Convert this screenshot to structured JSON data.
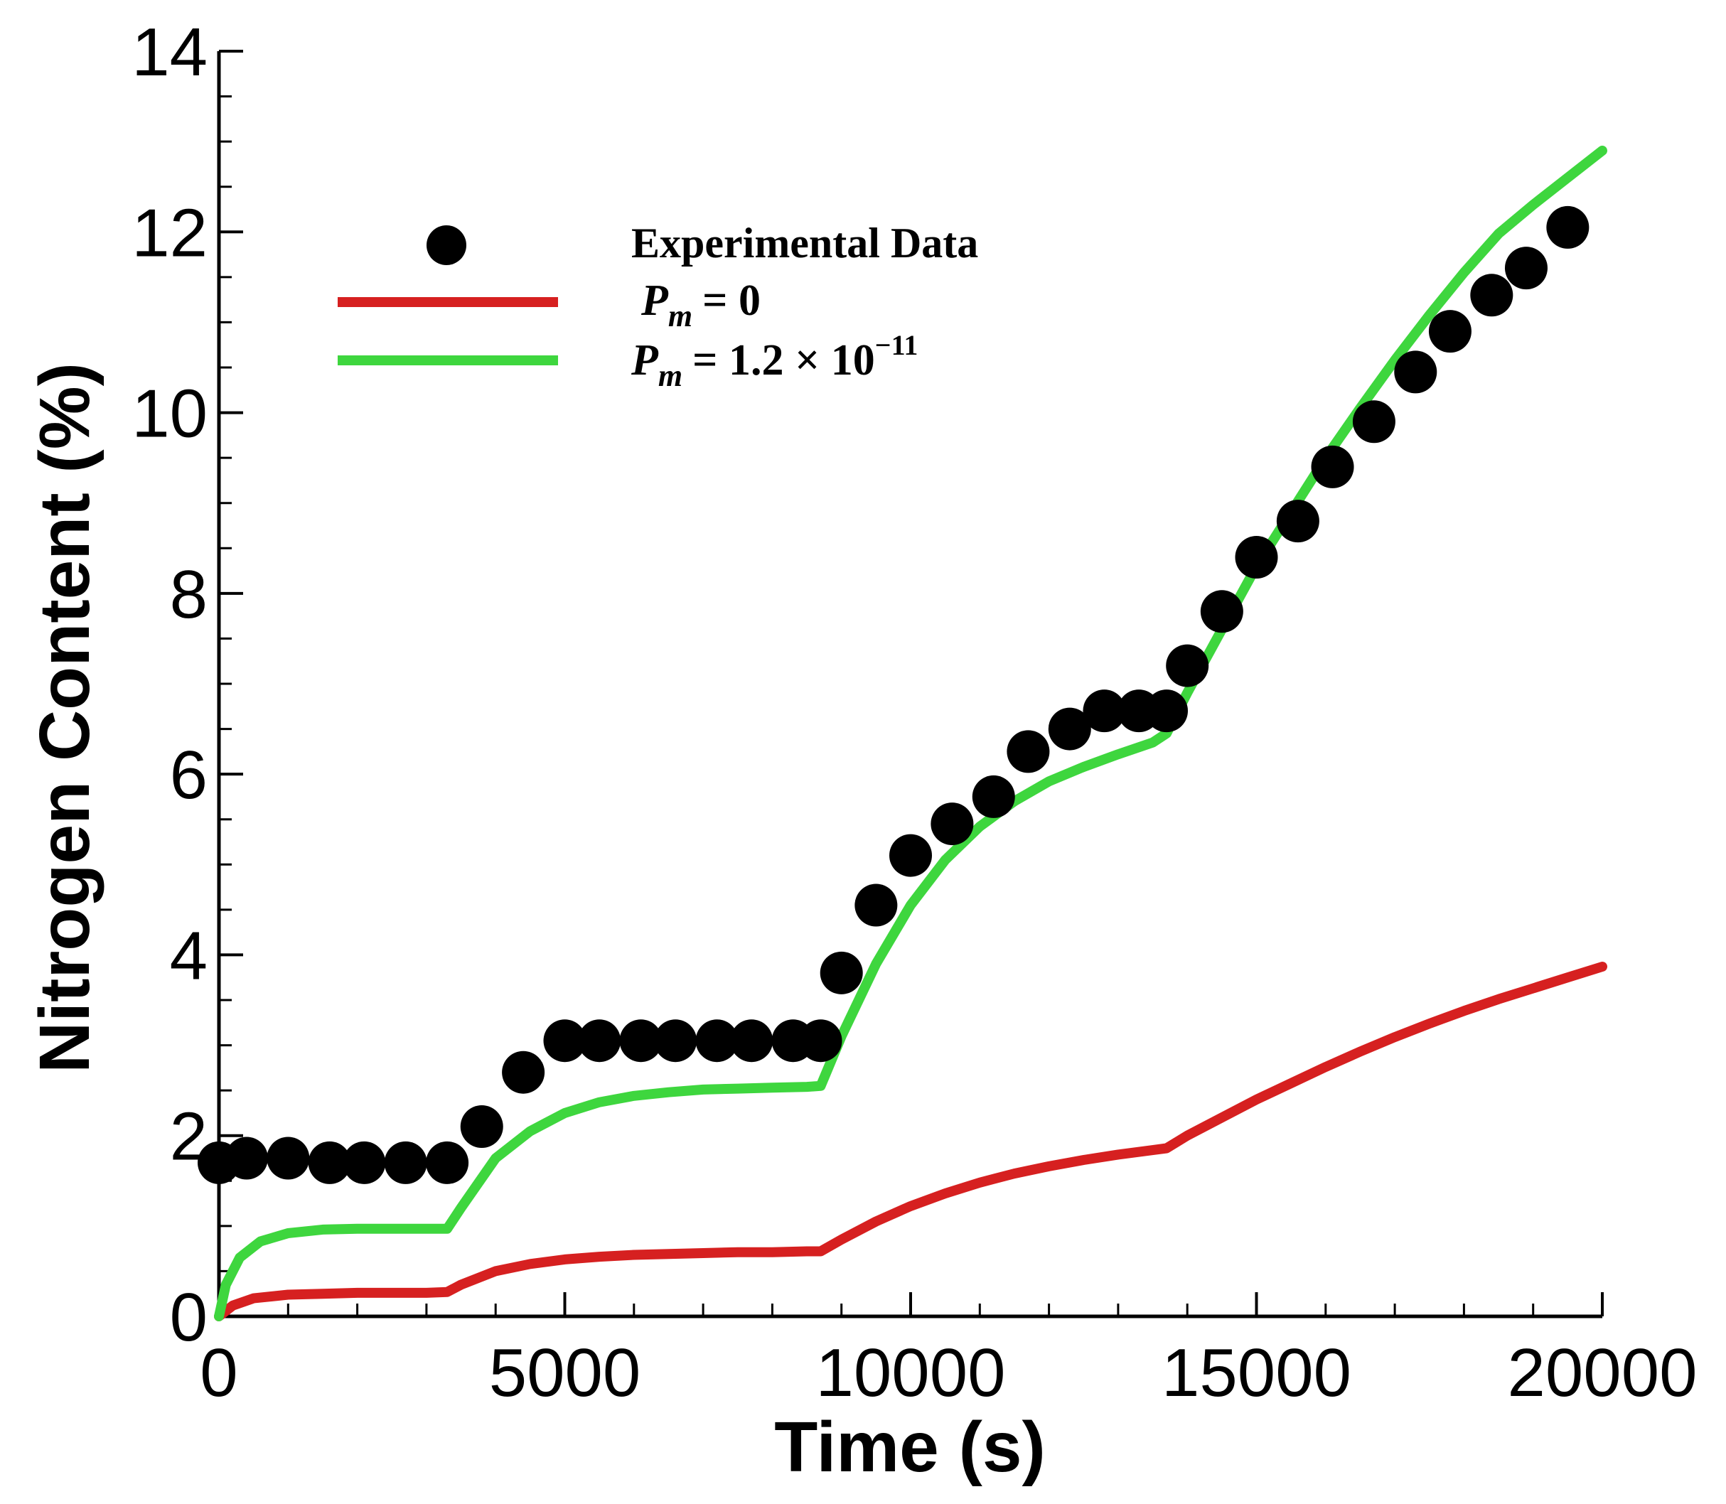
{
  "chart_data": {
    "type": "line",
    "title": "",
    "xlabel": "Time (s)",
    "ylabel": "Nitrogen Content (%)",
    "xlim": [
      0,
      20000
    ],
    "ylim": [
      0,
      14
    ],
    "x_ticks": [
      0,
      5000,
      10000,
      15000,
      20000
    ],
    "y_ticks": [
      0,
      2,
      4,
      6,
      8,
      10,
      12,
      14
    ],
    "x_tick_labels": [
      "0",
      "5000",
      "10000",
      "15000",
      "20000"
    ],
    "y_tick_labels": [
      "0",
      "2",
      "4",
      "6",
      "8",
      "10",
      "12",
      "14"
    ],
    "grid": false,
    "legend_position": "top-left",
    "series": [
      {
        "name": "Experimental Data",
        "style": "markers",
        "color": "#000000",
        "x": [
          0,
          400,
          1000,
          1600,
          2100,
          2700,
          3300,
          3800,
          4400,
          5000,
          5500,
          6100,
          6600,
          7200,
          7700,
          8300,
          8700,
          9000,
          9500,
          10000,
          10600,
          11200,
          11700,
          12300,
          12800,
          13300,
          13700,
          14000,
          14500,
          15000,
          15600,
          16100,
          16700,
          17300,
          17800,
          18400,
          18900,
          19500
        ],
        "y": [
          1.7,
          1.75,
          1.75,
          1.7,
          1.7,
          1.7,
          1.7,
          2.1,
          2.7,
          3.05,
          3.05,
          3.05,
          3.05,
          3.05,
          3.05,
          3.05,
          3.05,
          3.8,
          4.55,
          5.1,
          5.45,
          5.75,
          6.25,
          6.5,
          6.7,
          6.7,
          6.7,
          7.2,
          7.8,
          8.4,
          8.8,
          9.4,
          9.9,
          10.45,
          10.9,
          11.3,
          11.6,
          12.05
        ]
      },
      {
        "name": "P_m = 0",
        "style": "line",
        "color": "#d62020",
        "x": [
          0,
          200,
          500,
          1000,
          1500,
          2000,
          2500,
          3000,
          3300,
          3500,
          4000,
          4500,
          5000,
          5500,
          6000,
          6500,
          7000,
          7500,
          8000,
          8500,
          8700,
          9000,
          9500,
          10000,
          10500,
          11000,
          11500,
          12000,
          12500,
          13000,
          13500,
          13700,
          14000,
          14500,
          15000,
          15500,
          16000,
          16500,
          17000,
          17500,
          18000,
          18500,
          19000,
          19500,
          20000
        ],
        "y": [
          0.0,
          0.12,
          0.2,
          0.24,
          0.25,
          0.26,
          0.26,
          0.26,
          0.27,
          0.35,
          0.5,
          0.58,
          0.63,
          0.66,
          0.68,
          0.69,
          0.7,
          0.71,
          0.71,
          0.72,
          0.72,
          0.85,
          1.05,
          1.22,
          1.36,
          1.48,
          1.58,
          1.66,
          1.73,
          1.79,
          1.84,
          1.86,
          2.0,
          2.2,
          2.4,
          2.58,
          2.76,
          2.93,
          3.09,
          3.24,
          3.38,
          3.51,
          3.63,
          3.75,
          3.87
        ]
      },
      {
        "name": "P_m = 1.2 × 10⁻¹¹",
        "style": "line",
        "color": "#3ed63e",
        "x": [
          0,
          100,
          300,
          600,
          1000,
          1500,
          2000,
          2500,
          3000,
          3300,
          3500,
          4000,
          4500,
          5000,
          5500,
          6000,
          6500,
          7000,
          7500,
          8000,
          8500,
          8700,
          9000,
          9500,
          10000,
          10500,
          11000,
          11500,
          12000,
          12500,
          13000,
          13500,
          13700,
          14000,
          14500,
          15000,
          15500,
          16000,
          16500,
          17000,
          17500,
          18000,
          18500,
          19000,
          19500,
          20000
        ],
        "y": [
          0.0,
          0.35,
          0.65,
          0.83,
          0.92,
          0.96,
          0.97,
          0.97,
          0.97,
          0.97,
          1.2,
          1.75,
          2.05,
          2.25,
          2.37,
          2.44,
          2.48,
          2.51,
          2.52,
          2.53,
          2.54,
          2.55,
          3.1,
          3.9,
          4.55,
          5.05,
          5.42,
          5.7,
          5.92,
          6.08,
          6.22,
          6.35,
          6.45,
          6.9,
          7.6,
          8.3,
          8.9,
          9.5,
          10.05,
          10.58,
          11.08,
          11.55,
          11.98,
          12.3,
          12.6,
          12.9
        ]
      }
    ],
    "legend": {
      "experimental": "Experimental Data",
      "pm_symbol": "P",
      "pm_subscript": "m",
      "pm0_value": "=  0",
      "pm1_value": "= 1.2 × 10",
      "pm1_exponent": "−11"
    }
  }
}
